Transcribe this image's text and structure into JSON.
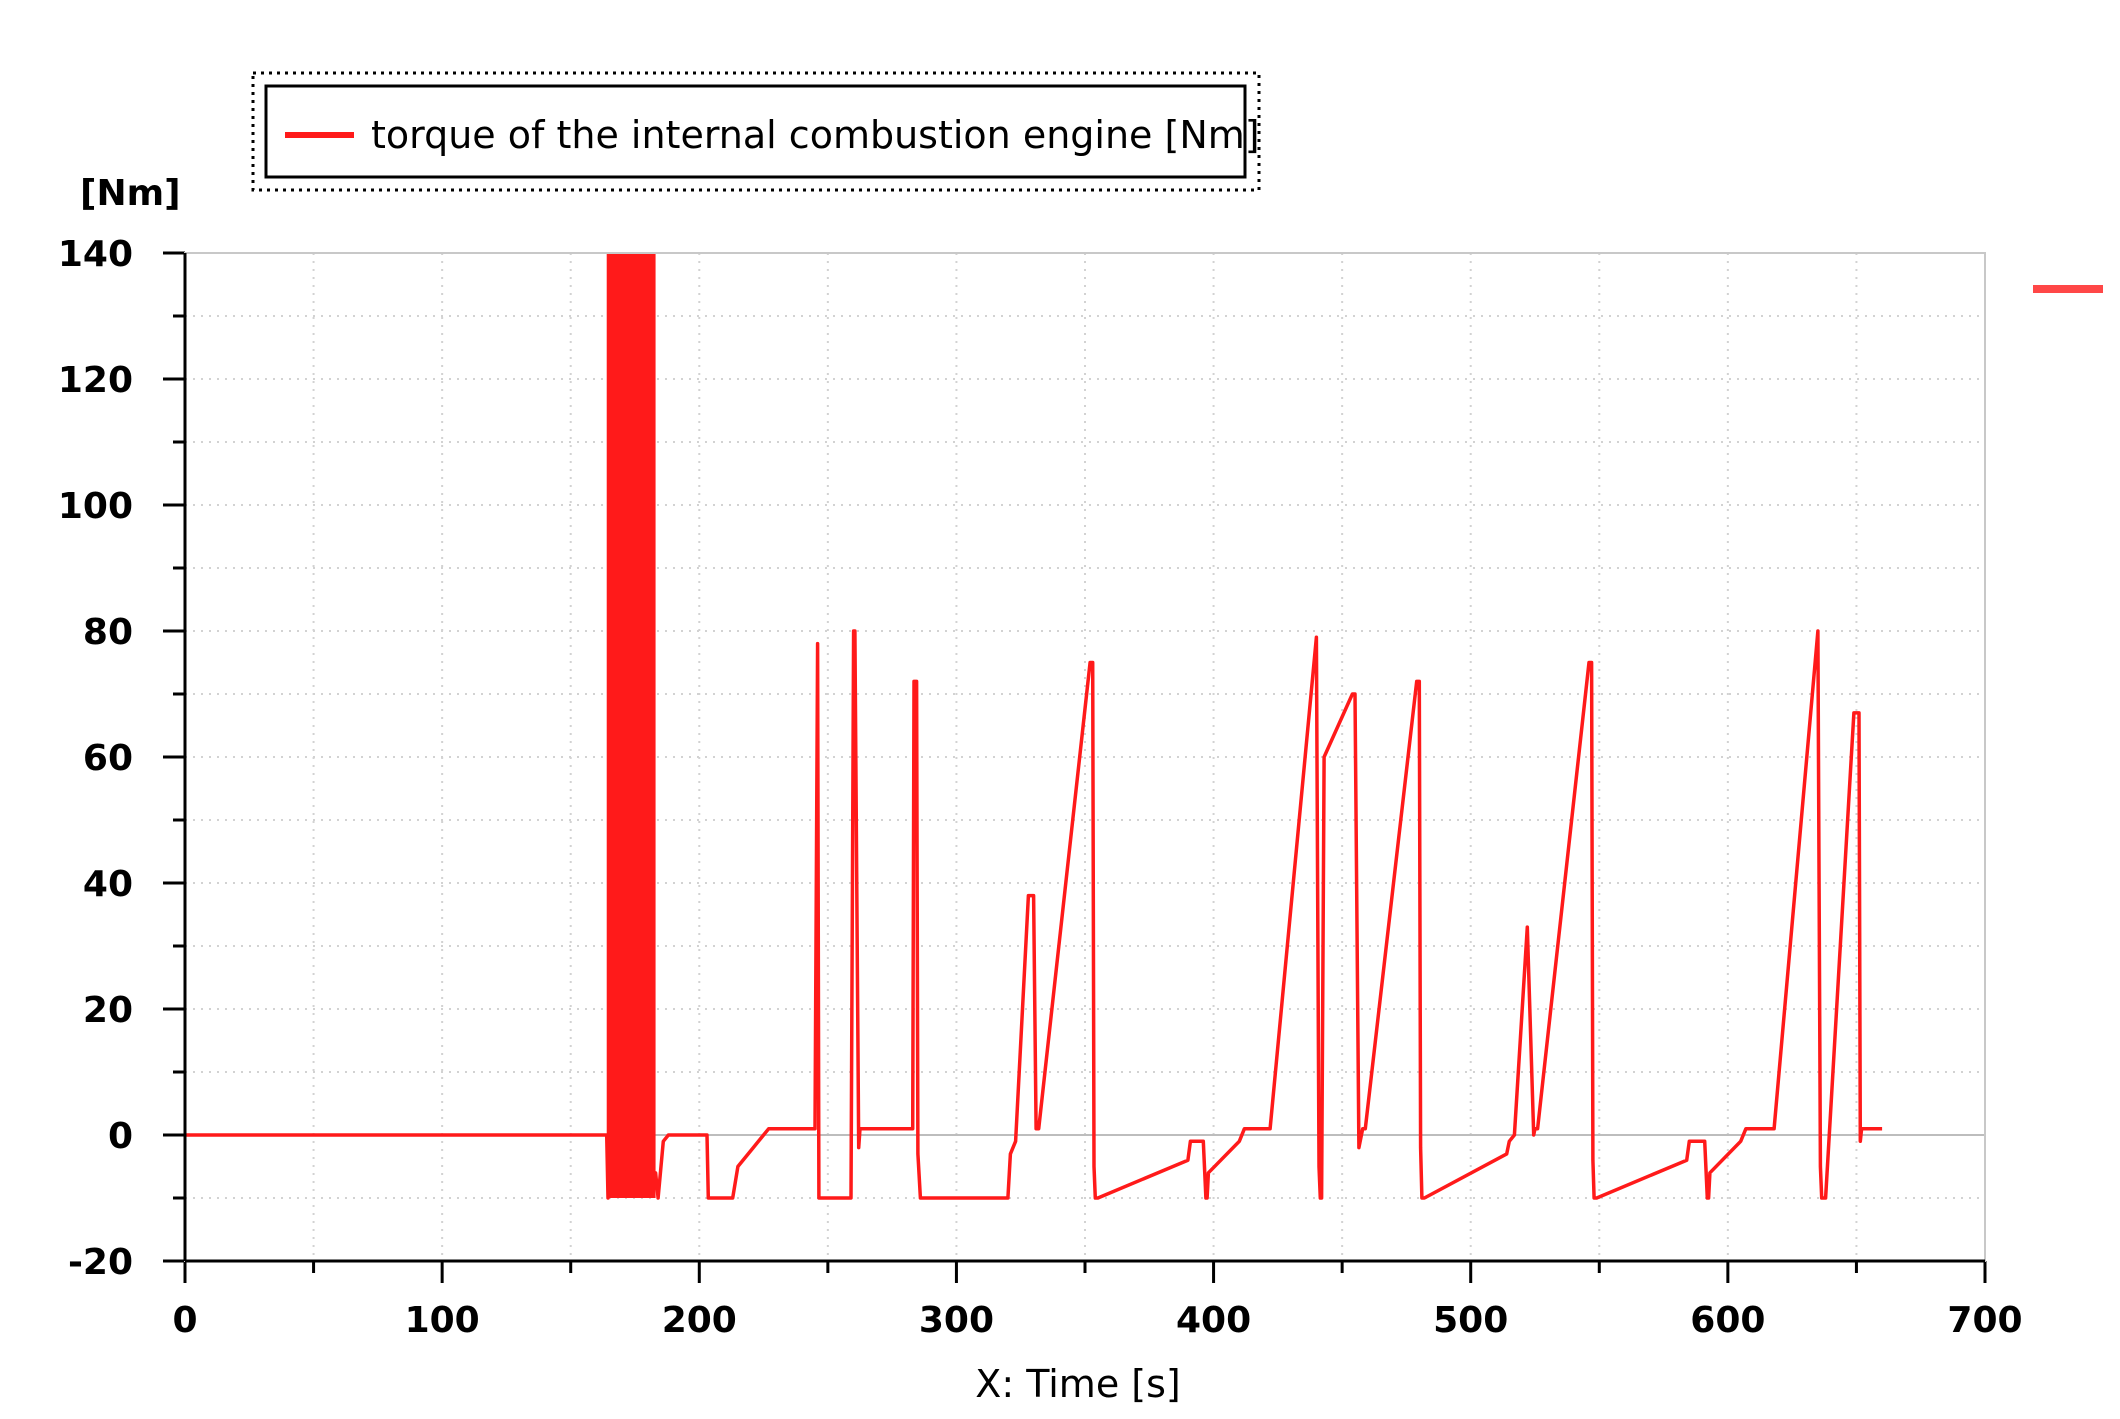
{
  "chart_data": {
    "type": "line",
    "ylabel_unit": "[Nm]",
    "xlabel": "X: Time [s]",
    "xlim": [
      0,
      700
    ],
    "ylim": [
      -20,
      140
    ],
    "x_ticks": [
      "0",
      "100",
      "200",
      "300",
      "400",
      "500",
      "600",
      "700"
    ],
    "y_ticks": [
      "140",
      "120",
      "100",
      "80",
      "60",
      "40",
      "20",
      "0",
      "-20"
    ],
    "grid": true,
    "legend_position": "top",
    "series": [
      {
        "name": "torque of the internal combustion engine [Nm]",
        "color": "#ff1a1a",
        "x": [
          0,
          164,
          164.5,
          165,
          183,
          184,
          186,
          188,
          190,
          198,
          203,
          203.5,
          213,
          215,
          221,
          227,
          245,
          246,
          246.5,
          247,
          248,
          259,
          260,
          260.5,
          262,
          262.5,
          263,
          282,
          283,
          283.5,
          284.5,
          285,
          286,
          288,
          320,
          321,
          323,
          328,
          330,
          331,
          331.5,
          332,
          352,
          353,
          353.5,
          354,
          354.5,
          355,
          390,
          391,
          396,
          397,
          397.5,
          398,
          410,
          412,
          418,
          422,
          440,
          441,
          441.5,
          442,
          443,
          454,
          455,
          456.5,
          458,
          458.5,
          459,
          479,
          480,
          480.5,
          481,
          481.5,
          482,
          514,
          515,
          517,
          522,
          524.5,
          525,
          526,
          546,
          547,
          547.5,
          548,
          548.5,
          549,
          584,
          585,
          591,
          592,
          592.5,
          593,
          605,
          607,
          613,
          618,
          635,
          636,
          636.5,
          637,
          638,
          648,
          649,
          651,
          651.5,
          652,
          660
        ],
        "y": [
          0,
          0,
          -10,
          -5,
          -6,
          -10,
          -1,
          0,
          0,
          0,
          0,
          -10,
          -10,
          -5,
          -2,
          1,
          1,
          78,
          -10,
          -10,
          -10,
          -10,
          80,
          80,
          -2,
          1,
          1,
          1,
          1,
          72,
          72,
          -3,
          -10,
          -10,
          -10,
          -3,
          -1,
          38,
          38,
          1,
          1,
          1,
          75,
          75,
          -5,
          -10,
          -10,
          -10,
          -4,
          -1,
          -1,
          -10,
          -10,
          -6,
          -1,
          1,
          1,
          1,
          79,
          -5,
          -10,
          -10,
          60,
          70,
          70,
          -2,
          1,
          1,
          1,
          72,
          72,
          -2,
          -10,
          -10,
          -10,
          -3,
          -1,
          0,
          33,
          0,
          1,
          1,
          75,
          75,
          -4,
          -10,
          -10,
          -10,
          -4,
          -1,
          -1,
          -10,
          -10,
          -6,
          -1,
          1,
          1,
          1,
          80,
          -5,
          -10,
          -10,
          -10,
          60,
          67,
          67,
          -1,
          1,
          1
        ],
        "burst_region": {
          "x_start": 164,
          "x_end": 183,
          "y_min": -10,
          "y_max": 140
        }
      }
    ]
  }
}
